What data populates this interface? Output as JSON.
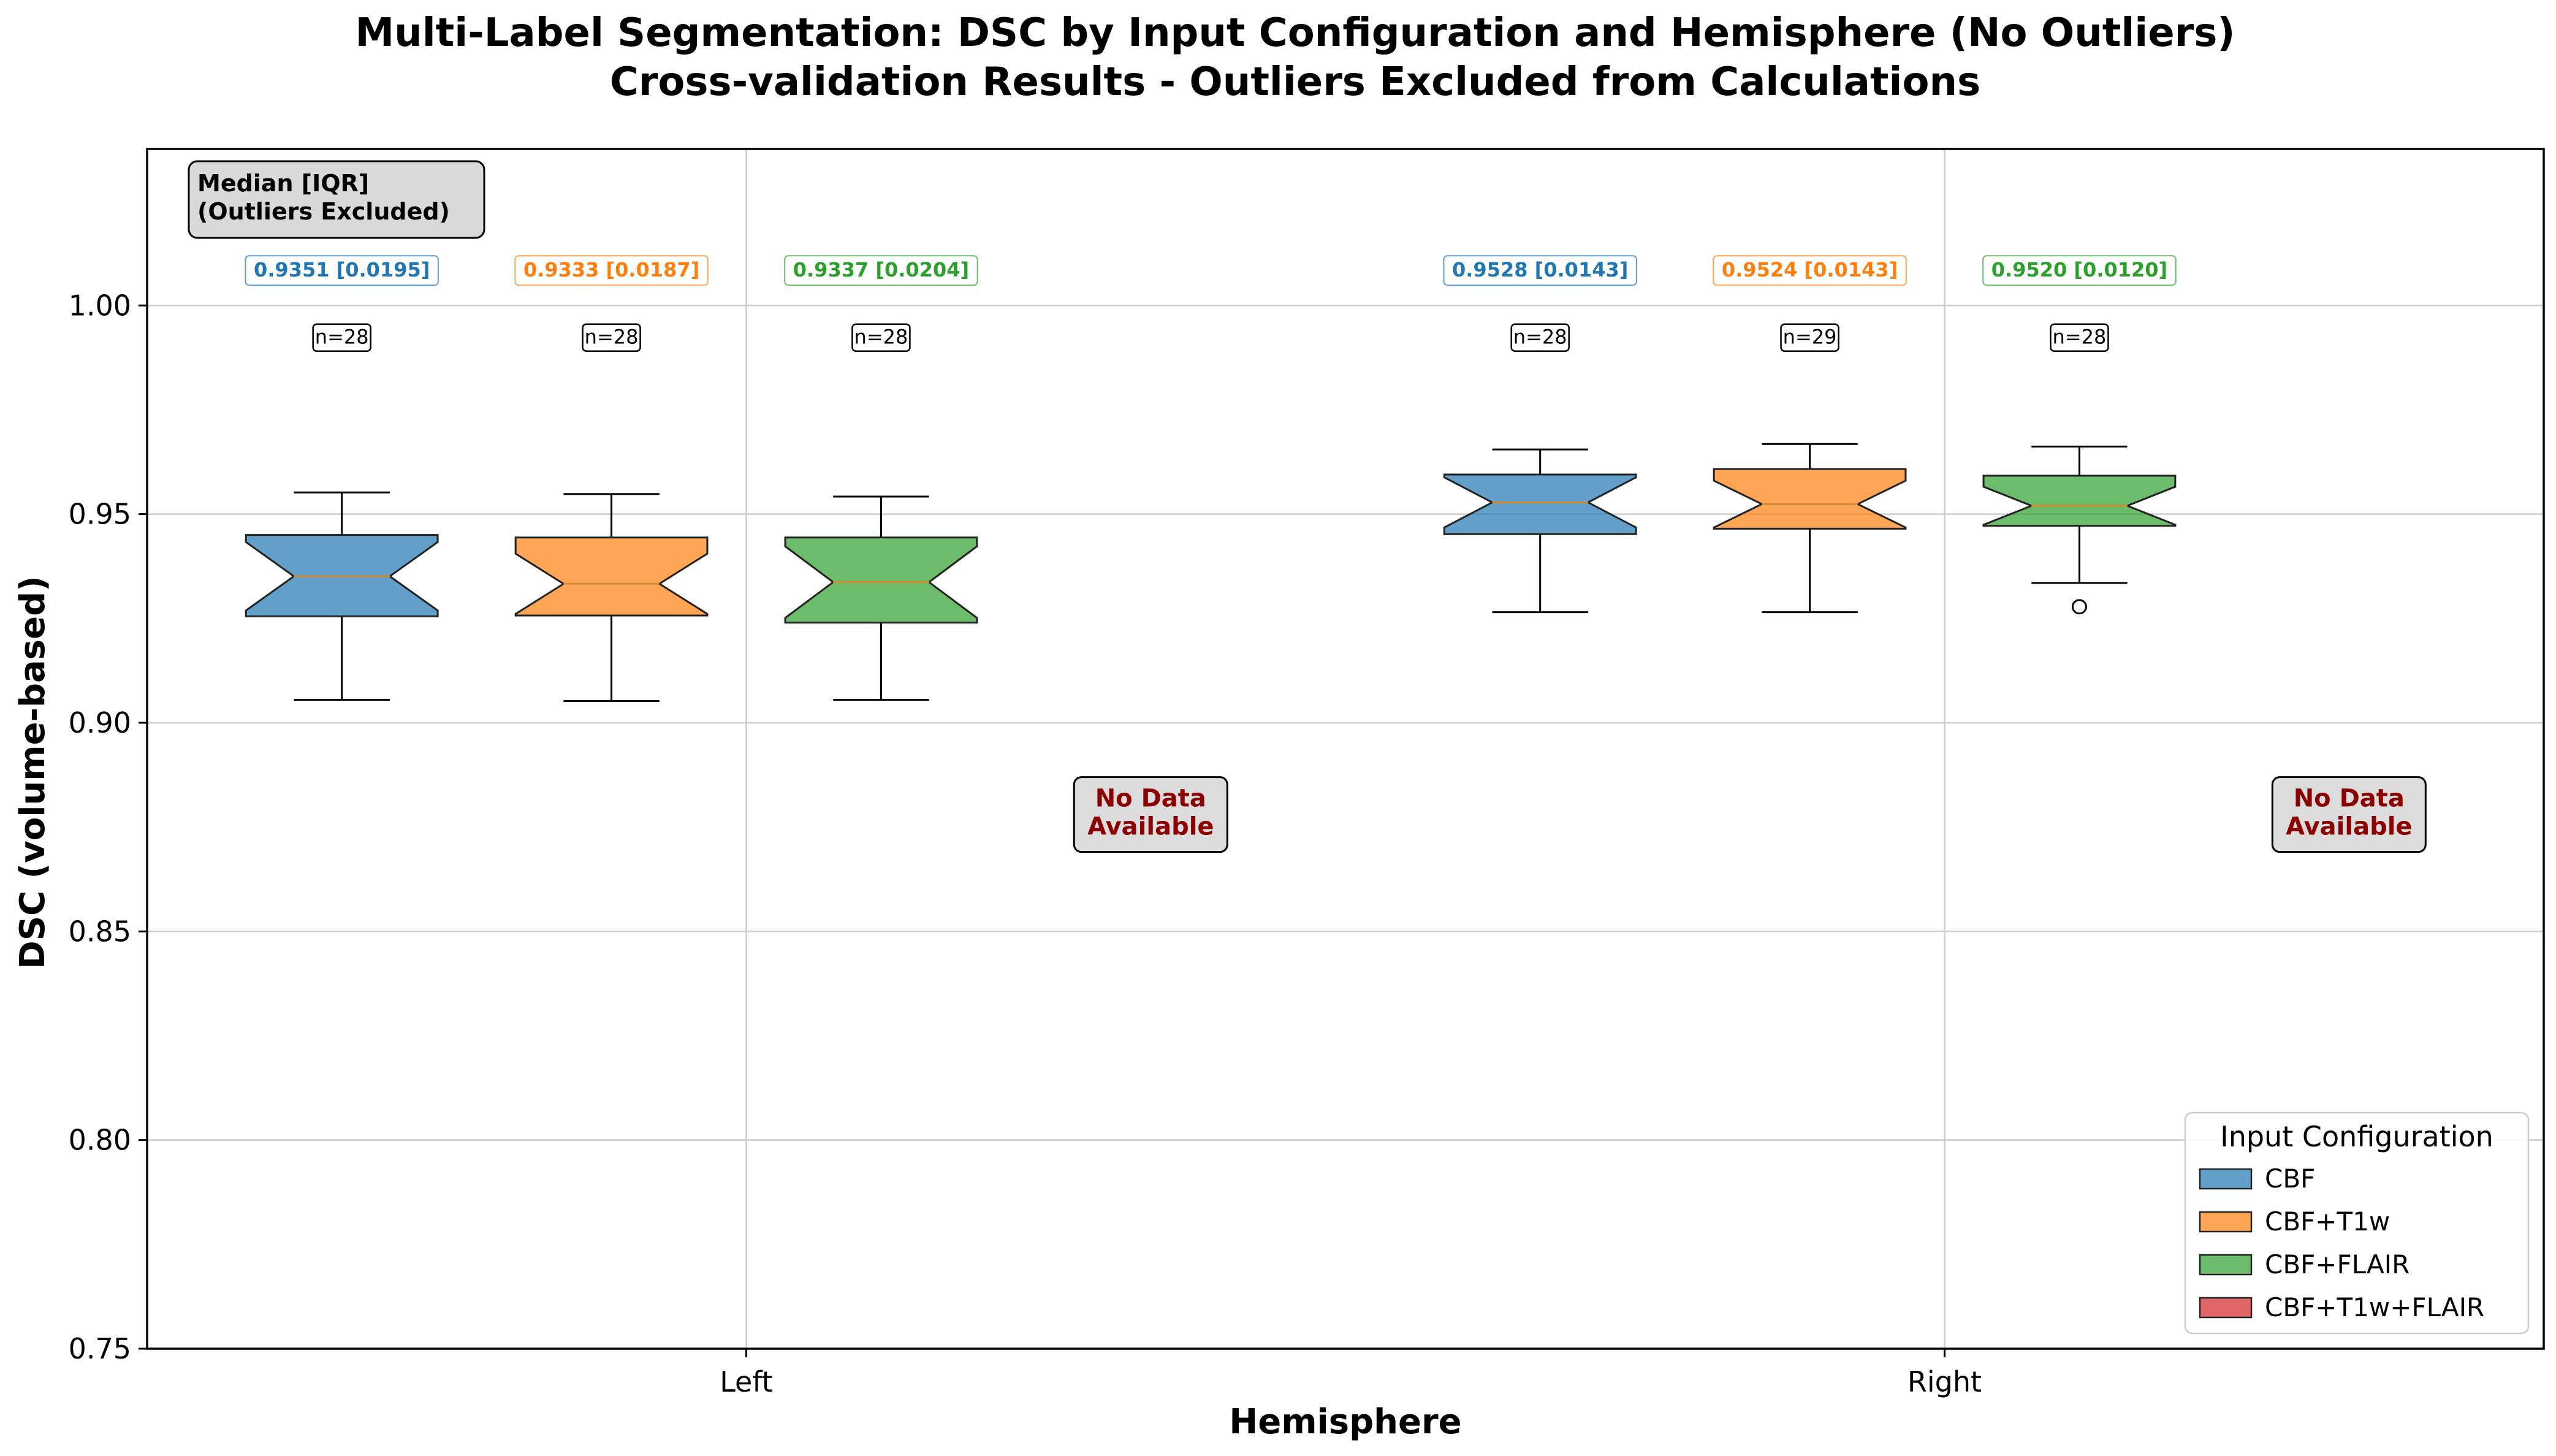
{
  "chart_data": {
    "type": "box",
    "title": "Multi-Label Segmentation: DSC by Input Configuration and Hemisphere (No Outliers)",
    "subtitle": "Cross-validation Results - Outliers Excluded from Calculations",
    "xlabel": "Hemisphere",
    "ylabel": "DSC (volume-based)",
    "ylim": [
      0.75,
      1.0375
    ],
    "yticks": [
      "0.75",
      "0.80",
      "0.85",
      "0.90",
      "0.95",
      "1.00"
    ],
    "grid": true,
    "notched": true,
    "categories": [
      "Left",
      "Right"
    ],
    "summary_box": "Median [IQR]\n(Outliers Excluded)",
    "no_data_label": "No Data\nAvailable",
    "legend": {
      "title": "Input Configuration",
      "position": "bottom-right",
      "entries": [
        {
          "name": "CBF",
          "color": "#1f77b4"
        },
        {
          "name": "CBF+T1w",
          "color": "#ff7f0e"
        },
        {
          "name": "CBF+FLAIR",
          "color": "#2ca02c"
        },
        {
          "name": "CBF+T1w+FLAIR",
          "color": "#d62728"
        }
      ]
    },
    "series": [
      {
        "name": "CBF",
        "boxes": [
          {
            "category": "Left",
            "whisker_low": 0.9055,
            "q1": 0.9255,
            "median": 0.9351,
            "q3": 0.945,
            "whisker_high": 0.9552,
            "outliers": [],
            "median_label": "0.9351 [0.0195]",
            "n_label": "n=28"
          },
          {
            "category": "Right",
            "whisker_low": 0.9265,
            "q1": 0.9452,
            "median": 0.9528,
            "q3": 0.9595,
            "whisker_high": 0.9655,
            "outliers": [],
            "median_label": "0.9528 [0.0143]",
            "n_label": "n=28"
          }
        ]
      },
      {
        "name": "CBF+T1w",
        "boxes": [
          {
            "category": "Left",
            "whisker_low": 0.9052,
            "q1": 0.9257,
            "median": 0.9333,
            "q3": 0.9444,
            "whisker_high": 0.9548,
            "outliers": [],
            "median_label": "0.9333 [0.0187]",
            "n_label": "n=28"
          },
          {
            "category": "Right",
            "whisker_low": 0.9265,
            "q1": 0.9465,
            "median": 0.9524,
            "q3": 0.9608,
            "whisker_high": 0.9668,
            "outliers": [],
            "median_label": "0.9524 [0.0143]",
            "n_label": "n=29"
          }
        ]
      },
      {
        "name": "CBF+FLAIR",
        "boxes": [
          {
            "category": "Left",
            "whisker_low": 0.9055,
            "q1": 0.924,
            "median": 0.9337,
            "q3": 0.9444,
            "whisker_high": 0.9542,
            "outliers": [],
            "median_label": "0.9337 [0.0204]",
            "n_label": "n=28"
          },
          {
            "category": "Right",
            "whisker_low": 0.9335,
            "q1": 0.9472,
            "median": 0.952,
            "q3": 0.9592,
            "whisker_high": 0.9662,
            "outliers": [
              0.9278
            ],
            "median_label": "0.9520 [0.0120]",
            "n_label": "n=28"
          }
        ]
      },
      {
        "name": "CBF+T1w+FLAIR",
        "boxes": [
          {
            "category": "Left",
            "no_data": true
          },
          {
            "category": "Right",
            "no_data": true
          }
        ]
      }
    ]
  }
}
